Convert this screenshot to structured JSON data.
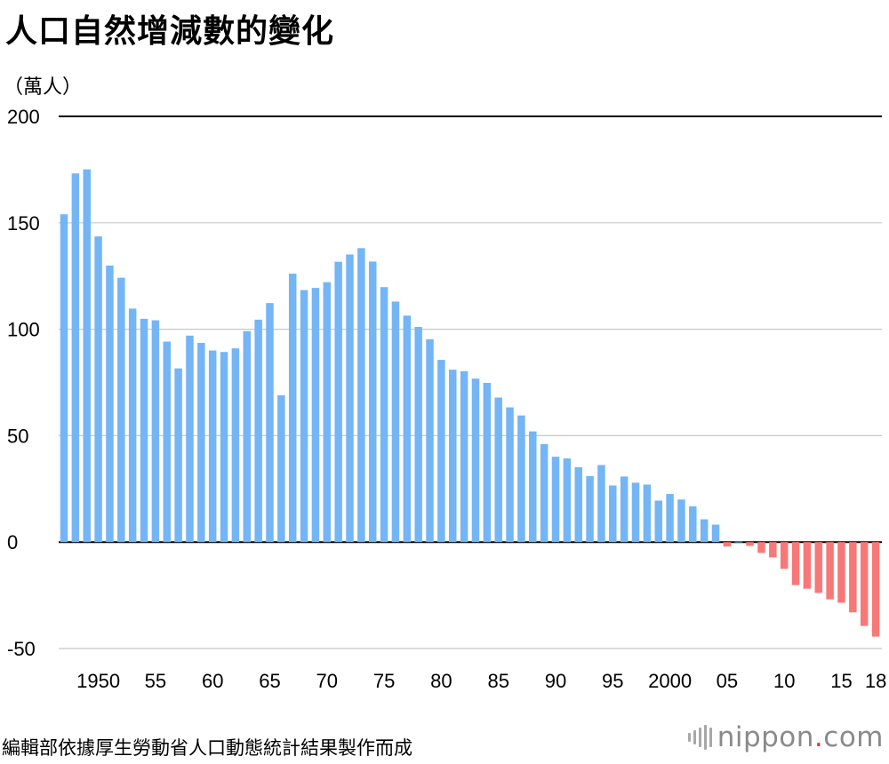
{
  "header": {
    "title": "人口自然增減數的變化",
    "unit": "（萬人）"
  },
  "footer": {
    "source": "編輯部依據厚生勞動省人口動態統計結果製作而成",
    "logo_text": "nippon",
    "logo_dot": ".",
    "logo_suffix": "com"
  },
  "colors": {
    "positive": "#74b5f6",
    "negative": "#f87878",
    "grid": "#c8c8c8",
    "axis": "#000000"
  },
  "chart_data": {
    "type": "bar",
    "title": "人口自然增減數的變化",
    "ylabel": "（萬人）",
    "xlabel": "",
    "ylim": [
      -50,
      200
    ],
    "yticks": [
      200,
      150,
      100,
      50,
      0,
      -50
    ],
    "grid": true,
    "legend": "none",
    "x_tick_labels": [
      {
        "year": 1950,
        "label": "1950"
      },
      {
        "year": 1955,
        "label": "55"
      },
      {
        "year": 1960,
        "label": "60"
      },
      {
        "year": 1965,
        "label": "65"
      },
      {
        "year": 1970,
        "label": "70"
      },
      {
        "year": 1975,
        "label": "75"
      },
      {
        "year": 1980,
        "label": "80"
      },
      {
        "year": 1985,
        "label": "85"
      },
      {
        "year": 1990,
        "label": "90"
      },
      {
        "year": 1995,
        "label": "95"
      },
      {
        "year": 2000,
        "label": "2000"
      },
      {
        "year": 2005,
        "label": "05"
      },
      {
        "year": 2010,
        "label": "10"
      },
      {
        "year": 2015,
        "label": "15"
      },
      {
        "year": 2018,
        "label": "18"
      }
    ],
    "years": [
      1947,
      1948,
      1949,
      1950,
      1951,
      1952,
      1953,
      1954,
      1955,
      1956,
      1957,
      1958,
      1959,
      1960,
      1961,
      1962,
      1963,
      1964,
      1965,
      1966,
      1967,
      1968,
      1969,
      1970,
      1971,
      1972,
      1973,
      1974,
      1975,
      1976,
      1977,
      1978,
      1979,
      1980,
      1981,
      1982,
      1983,
      1984,
      1985,
      1986,
      1987,
      1988,
      1989,
      1990,
      1991,
      1992,
      1993,
      1994,
      1995,
      1996,
      1997,
      1998,
      1999,
      2000,
      2001,
      2002,
      2003,
      2004,
      2005,
      2006,
      2007,
      2008,
      2009,
      2010,
      2011,
      2012,
      2013,
      2014,
      2015,
      2016,
      2017,
      2018
    ],
    "values": [
      154.0,
      173.2,
      175.1,
      143.6,
      129.9,
      124.2,
      109.7,
      104.9,
      104.2,
      94.2,
      81.6,
      97.0,
      93.6,
      90.0,
      89.3,
      91.0,
      99.1,
      104.5,
      112.3,
      69.0,
      126.1,
      118.4,
      119.4,
      122.1,
      131.7,
      135.1,
      138.1,
      131.8,
      119.8,
      113.0,
      106.4,
      101.1,
      95.3,
      85.6,
      81.0,
      80.3,
      76.8,
      74.8,
      67.9,
      63.3,
      59.5,
      52.0,
      46.0,
      40.1,
      39.3,
      35.2,
      31.0,
      36.2,
      26.6,
      30.8,
      27.9,
      27.0,
      19.5,
      22.6,
      20.0,
      16.8,
      10.7,
      8.2,
      -2.1,
      0.2,
      -1.8,
      -5.1,
      -7.2,
      -12.6,
      -20.2,
      -21.9,
      -23.9,
      -26.9,
      -28.5,
      -33.0,
      -39.4,
      -44.4
    ]
  }
}
